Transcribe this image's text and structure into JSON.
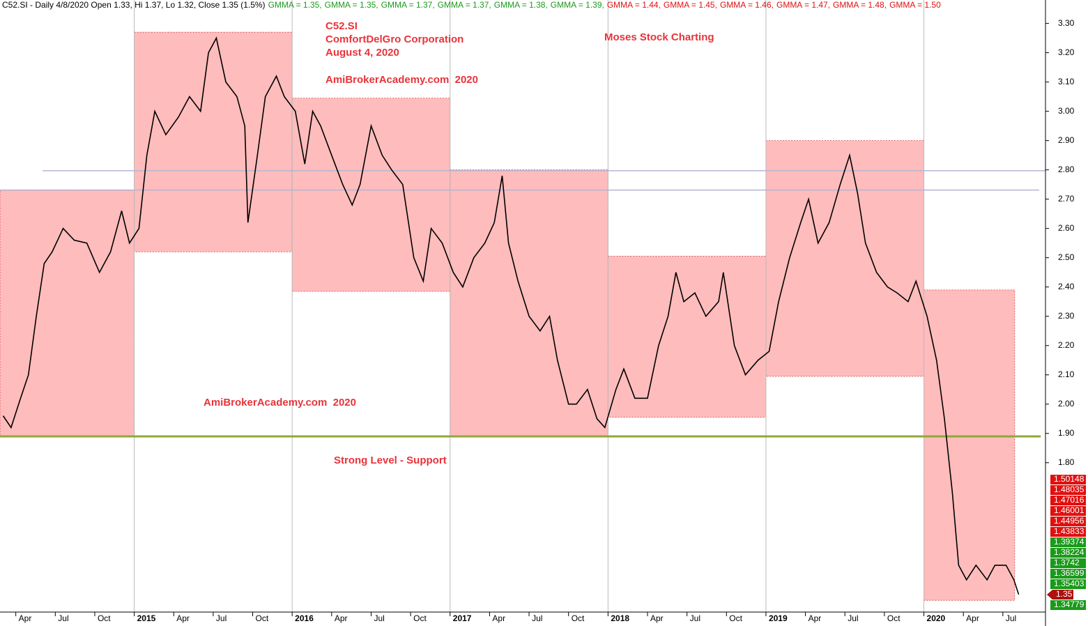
{
  "header": {
    "text": "C52.SI - Daily 4/8/2020 Open 1.33, Hi 1.37, Lo 1.32, Close 1.35 (1.5%)",
    "gmma": [
      {
        "label": "GMMA = 1.35,",
        "color": "#1a9a1a"
      },
      {
        "label": "GMMA = 1.35,",
        "color": "#1a9a1a"
      },
      {
        "label": "GMMA = 1.37,",
        "color": "#1a9a1a"
      },
      {
        "label": "GMMA = 1.37,",
        "color": "#1a9a1a"
      },
      {
        "label": "GMMA = 1.38,",
        "color": "#1a9a1a"
      },
      {
        "label": "GMMA = 1.39,",
        "color": "#1a9a1a"
      },
      {
        "label": "GMMA = 1.44,",
        "color": "#e01010"
      },
      {
        "label": "GMMA = 1.45,",
        "color": "#e01010"
      },
      {
        "label": "GMMA = 1.46,",
        "color": "#e01010"
      },
      {
        "label": "GMMA = 1.47,",
        "color": "#e01010"
      },
      {
        "label": "GMMA = 1.48,",
        "color": "#e01010"
      },
      {
        "label": "GMMA = 1.50",
        "color": "#e01010"
      }
    ]
  },
  "chart_data": {
    "type": "line",
    "annotations": [
      "C52.SI",
      "ComfortDelGro Corporation",
      "August 4, 2020",
      "AmiBrokerAcademy.com  2020",
      "Moses Stock Charting",
      "AmiBrokerAcademy.com  2020",
      "Strong Level - Support"
    ],
    "x": [
      2014.17,
      2014.22,
      2014.28,
      2014.33,
      2014.38,
      2014.43,
      2014.48,
      2014.55,
      2014.62,
      2014.7,
      2014.78,
      2014.85,
      2014.92,
      2014.97,
      2015.03,
      2015.08,
      2015.13,
      2015.2,
      2015.28,
      2015.35,
      2015.42,
      2015.47,
      2015.52,
      2015.58,
      2015.65,
      2015.7,
      2015.72,
      2015.78,
      2015.83,
      2015.9,
      2015.95,
      2016.02,
      2016.08,
      2016.13,
      2016.18,
      2016.25,
      2016.32,
      2016.38,
      2016.43,
      2016.5,
      2016.57,
      2016.63,
      2016.7,
      2016.77,
      2016.83,
      2016.88,
      2016.95,
      2017.02,
      2017.08,
      2017.15,
      2017.22,
      2017.28,
      2017.33,
      2017.37,
      2017.43,
      2017.5,
      2017.57,
      2017.63,
      2017.68,
      2017.75,
      2017.8,
      2017.87,
      2017.93,
      2017.98,
      2018.05,
      2018.1,
      2018.17,
      2018.25,
      2018.32,
      2018.38,
      2018.43,
      2018.48,
      2018.55,
      2018.62,
      2018.7,
      2018.73,
      2018.8,
      2018.87,
      2018.95,
      2019.02,
      2019.08,
      2019.15,
      2019.22,
      2019.27,
      2019.33,
      2019.4,
      2019.47,
      2019.53,
      2019.58,
      2019.63,
      2019.7,
      2019.77,
      2019.83,
      2019.9,
      2019.95,
      2020.02,
      2020.08,
      2020.13,
      2020.18,
      2020.22,
      2020.27,
      2020.33,
      2020.4,
      2020.45,
      2020.52,
      2020.57,
      2020.6
    ],
    "series": [
      {
        "color": "#000000",
        "values": [
          1.96,
          1.92,
          2.02,
          2.1,
          2.3,
          2.48,
          2.52,
          2.6,
          2.56,
          2.55,
          2.45,
          2.52,
          2.66,
          2.55,
          2.6,
          2.85,
          3.0,
          2.92,
          2.98,
          3.05,
          3.0,
          3.2,
          3.25,
          3.1,
          3.05,
          2.95,
          2.62,
          2.85,
          3.05,
          3.12,
          3.05,
          3.0,
          2.82,
          3.0,
          2.95,
          2.85,
          2.75,
          2.68,
          2.75,
          2.95,
          2.85,
          2.8,
          2.75,
          2.5,
          2.42,
          2.6,
          2.55,
          2.45,
          2.4,
          2.5,
          2.55,
          2.62,
          2.78,
          2.55,
          2.42,
          2.3,
          2.25,
          2.3,
          2.15,
          2.0,
          2.0,
          2.05,
          1.95,
          1.92,
          2.05,
          2.12,
          2.02,
          2.02,
          2.2,
          2.3,
          2.45,
          2.35,
          2.38,
          2.3,
          2.35,
          2.45,
          2.2,
          2.1,
          2.15,
          2.18,
          2.35,
          2.5,
          2.62,
          2.7,
          2.55,
          2.62,
          2.75,
          2.85,
          2.72,
          2.55,
          2.45,
          2.4,
          2.38,
          2.35,
          2.42,
          2.3,
          2.15,
          1.95,
          1.7,
          1.45,
          1.4,
          1.45,
          1.4,
          1.45,
          1.45,
          1.4,
          1.35
        ]
      }
    ],
    "ranges": [
      {
        "x": [
          2014.15,
          2015.0
        ],
        "y": [
          1.89,
          2.73
        ]
      },
      {
        "x": [
          2015.0,
          2016.0
        ],
        "y": [
          2.52,
          3.27
        ]
      },
      {
        "x": [
          2016.0,
          2017.0
        ],
        "y": [
          2.385,
          3.045
        ]
      },
      {
        "x": [
          2017.0,
          2018.0
        ],
        "y": [
          1.89,
          2.8
        ]
      },
      {
        "x": [
          2018.0,
          2019.0
        ],
        "y": [
          1.955,
          2.505
        ]
      },
      {
        "x": [
          2019.0,
          2020.0
        ],
        "y": [
          2.095,
          2.9
        ]
      },
      {
        "x": [
          2020.0,
          2020.575
        ],
        "y": [
          1.33,
          2.39
        ]
      }
    ],
    "range_color": "#ffbcbc",
    "hlines": [
      {
        "y": 1.89,
        "x": [
          2014.15,
          2020.74
        ],
        "color": "#8fa83a"
      },
      {
        "y": 2.797,
        "x": [
          2014.42,
          2020.77
        ],
        "color": "#b4b4d4"
      },
      {
        "y": 2.731,
        "x": [
          2014.15,
          2020.73
        ],
        "color": "#b4b4d4"
      }
    ],
    "xlim": [
      2014.15,
      2020.77
    ],
    "ylim": [
      1.29,
      3.38
    ],
    "xticks": [
      {
        "value": 2014.25,
        "label": "Apr"
      },
      {
        "value": 2014.5,
        "label": "Jul"
      },
      {
        "value": 2014.75,
        "label": "Oct"
      },
      2015,
      {
        "value": 2015.25,
        "label": "Apr"
      },
      {
        "value": 2015.5,
        "label": "Jul"
      },
      {
        "value": 2015.75,
        "label": "Oct"
      },
      2016,
      {
        "value": 2016.25,
        "label": "Apr"
      },
      {
        "value": 2016.5,
        "label": "Jul"
      },
      {
        "value": 2016.75,
        "label": "Oct"
      },
      2017,
      {
        "value": 2017.25,
        "label": "Apr"
      },
      {
        "value": 2017.5,
        "label": "Jul"
      },
      {
        "value": 2017.75,
        "label": "Oct"
      },
      2018,
      {
        "value": 2018.25,
        "label": "Apr"
      },
      {
        "value": 2018.5,
        "label": "Jul"
      },
      {
        "value": 2018.75,
        "label": "Oct"
      },
      2019,
      {
        "value": 2019.25,
        "label": "Apr"
      },
      {
        "value": 2019.5,
        "label": "Jul"
      },
      {
        "value": 2019.75,
        "label": "Oct"
      },
      2020,
      {
        "value": 2020.25,
        "label": "Apr"
      },
      {
        "value": 2020.5,
        "label": "Jul"
      }
    ],
    "yticks": [
      {
        "value": 1.8,
        "label": "1.80"
      },
      {
        "value": 1.9,
        "label": "1.90"
      },
      {
        "value": 2.0,
        "label": "2.00"
      },
      {
        "value": 2.1,
        "label": "2.10"
      },
      {
        "value": 2.2,
        "label": "2.20"
      },
      {
        "value": 2.3,
        "label": "2.30"
      },
      {
        "value": 2.4,
        "label": "2.40"
      },
      {
        "value": 2.5,
        "label": "2.50"
      },
      {
        "value": 2.6,
        "label": "2.60"
      },
      {
        "value": 2.7,
        "label": "2.70"
      },
      {
        "value": 2.8,
        "label": "2.80"
      },
      {
        "value": 2.9,
        "label": "2.90"
      },
      {
        "value": 3.0,
        "label": "3.00"
      },
      {
        "value": 3.1,
        "label": "3.10"
      },
      {
        "value": 3.2,
        "label": "3.20"
      },
      {
        "value": 3.3,
        "label": "3.30"
      }
    ],
    "value_boxes": [
      {
        "value": 1.50148,
        "color": "#e01010"
      },
      {
        "value": 1.48035,
        "color": "#e01010"
      },
      {
        "value": 1.47016,
        "color": "#e01010"
      },
      {
        "value": 1.46001,
        "color": "#e01010"
      },
      {
        "value": 1.44956,
        "color": "#e01010"
      },
      {
        "value": 1.43833,
        "color": "#e01010"
      },
      {
        "value": 1.39374,
        "color": "#1a9a1a"
      },
      {
        "value": 1.38224,
        "color": "#1a9a1a"
      },
      {
        "value": 1.3742,
        "color": "#1a9a1a"
      },
      {
        "value": 1.36599,
        "color": "#1a9a1a"
      },
      {
        "value": 1.35403,
        "color": "#1a9a1a"
      },
      {
        "value": 1.35,
        "color": "#b01010"
      },
      {
        "value": 1.34779,
        "color": "#1a9a1a"
      }
    ]
  }
}
